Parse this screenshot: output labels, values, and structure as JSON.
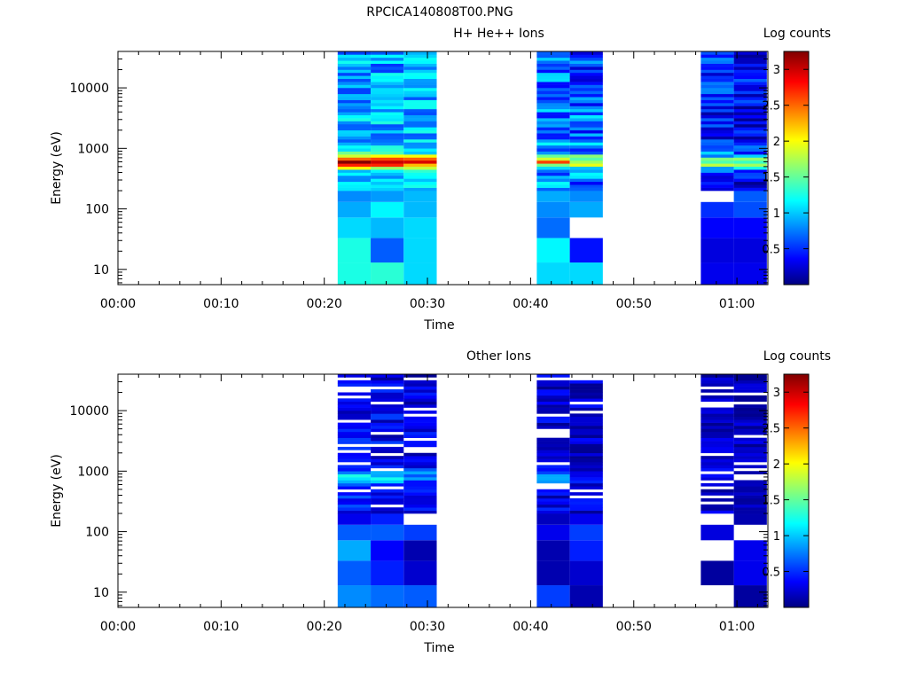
{
  "figure_title": "RPCICA140808T00.PNG",
  "colorbar": {
    "label": "Log counts",
    "min": 0,
    "max": 3.25,
    "ticks": [
      0.5,
      1,
      1.5,
      2,
      2.5,
      3
    ],
    "tick_labels": [
      "0.5",
      "1",
      "1.5",
      "2",
      "2.5",
      "3"
    ]
  },
  "chart_data": [
    {
      "type": "heatmap",
      "title": "H+ He++ Ions",
      "xlabel": "Time",
      "ylabel": "Energy (eV)",
      "x_unit": "minutes since 00:00",
      "xlim": [
        0,
        63
      ],
      "ylim": [
        5.6,
        40000
      ],
      "y_scale": "log",
      "x_ticks": [
        0,
        10,
        20,
        30,
        40,
        50,
        60
      ],
      "x_tick_labels": [
        "00:00",
        "00:10",
        "00:20",
        "00:30",
        "00:40",
        "00:50",
        "01:00"
      ],
      "y_ticks": [
        10,
        100,
        1000,
        10000
      ],
      "y_tick_labels": [
        "10",
        "100",
        "1000",
        "10000"
      ],
      "time_blocks": [
        {
          "t_start": 21.3,
          "t_end": 24.5
        },
        {
          "t_start": 24.5,
          "t_end": 27.7
        },
        {
          "t_start": 27.7,
          "t_end": 30.9
        },
        {
          "t_start": 40.6,
          "t_end": 43.8
        },
        {
          "t_start": 43.8,
          "t_end": 47.0
        },
        {
          "t_start": 56.5,
          "t_end": 59.7
        },
        {
          "t_start": 59.7,
          "t_end": 62.9
        }
      ],
      "low_band": {
        "edges": [
          5.6,
          13,
          33,
          72,
          130,
          200
        ],
        "values": [
          [
            1.3,
            1.3,
            1.1,
            0.95,
            0.85
          ],
          [
            1.35,
            0.7,
            1.0,
            1.2,
            0.9
          ],
          [
            1.1,
            1.1,
            1.1,
            1.0,
            1.0
          ],
          [
            1.1,
            1.2,
            0.75,
            0.85,
            0.95
          ],
          [
            1.1,
            0.45,
            null,
            0.95,
            0.85
          ],
          [
            0.35,
            0.3,
            0.4,
            0.55,
            null
          ],
          [
            0.35,
            0.3,
            0.4,
            0.65,
            0.7
          ]
        ]
      },
      "high_band": {
        "e_min": 200,
        "e_max": 40000,
        "peak_energy": 600,
        "block_peak": [
          3.0,
          3.0,
          2.8,
          2.3,
          2.0,
          1.8,
          1.7
        ],
        "block_base": [
          1.0,
          1.0,
          1.0,
          0.85,
          0.75,
          0.55,
          0.45
        ],
        "block_var": [
          0.35,
          0.35,
          0.35,
          0.4,
          0.45,
          0.4,
          0.4
        ],
        "white_fraction": 0
      }
    },
    {
      "type": "heatmap",
      "title": "Other Ions",
      "xlabel": "Time",
      "ylabel": "Energy (eV)",
      "x_unit": "minutes since 00:00",
      "xlim": [
        0,
        63
      ],
      "ylim": [
        5.6,
        40000
      ],
      "y_scale": "log",
      "x_ticks": [
        0,
        10,
        20,
        30,
        40,
        50,
        60
      ],
      "x_tick_labels": [
        "00:00",
        "00:10",
        "00:20",
        "00:30",
        "00:40",
        "00:50",
        "01:00"
      ],
      "y_ticks": [
        10,
        100,
        1000,
        10000
      ],
      "y_tick_labels": [
        "10",
        "100",
        "1000",
        "10000"
      ],
      "time_blocks": [
        {
          "t_start": 21.3,
          "t_end": 24.5
        },
        {
          "t_start": 24.5,
          "t_end": 27.7
        },
        {
          "t_start": 27.7,
          "t_end": 30.9
        },
        {
          "t_start": 40.6,
          "t_end": 43.8
        },
        {
          "t_start": 43.8,
          "t_end": 47.0
        },
        {
          "t_start": 56.5,
          "t_end": 59.7
        },
        {
          "t_start": 59.7,
          "t_end": 62.9
        }
      ],
      "low_band": {
        "edges": [
          5.6,
          13,
          33,
          72,
          130,
          200
        ],
        "values": [
          [
            0.85,
            0.7,
            0.95,
            0.7,
            0.35
          ],
          [
            0.75,
            0.5,
            0.4,
            0.7,
            0.5
          ],
          [
            0.7,
            0.25,
            0.15,
            0.6,
            null
          ],
          [
            0.6,
            0.15,
            0.15,
            0.35,
            0.2
          ],
          [
            0.15,
            0.25,
            0.5,
            0.6,
            0.35
          ],
          [
            null,
            0.1,
            null,
            0.3,
            null
          ],
          [
            0.1,
            0.35,
            0.35,
            null,
            0.15
          ]
        ]
      },
      "high_band": {
        "e_min": 200,
        "e_max": 40000,
        "peak_energy": 800,
        "block_peak": [
          1.3,
          1.1,
          0.9,
          0.9,
          0.6,
          0.4,
          0.35
        ],
        "block_base": [
          0.45,
          0.4,
          0.35,
          0.3,
          0.3,
          0.25,
          0.2
        ],
        "block_var": [
          0.25,
          0.25,
          0.25,
          0.25,
          0.25,
          0.2,
          0.2
        ],
        "white_fraction": 0.22
      }
    }
  ]
}
